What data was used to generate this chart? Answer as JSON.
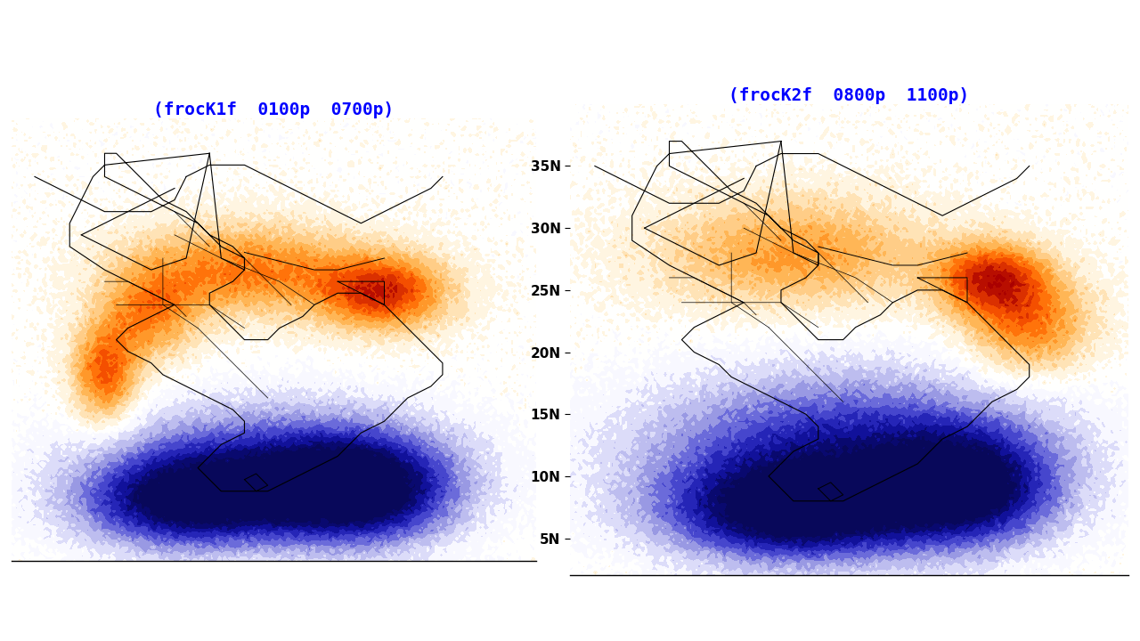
{
  "title_left": "(frocK1f  0100p  0700p)",
  "title_right": "(frocK2f  0800p  1100p)",
  "title_color": "#0000FF",
  "title_fontsize": 14,
  "background_color": "#FFFFFF",
  "fig_width": 12.8,
  "fig_height": 7.2,
  "lat_ticks": [
    5,
    10,
    15,
    20,
    25,
    30,
    35
  ],
  "lon_range": [
    65,
    100
  ],
  "lat_range": [
    3,
    38
  ],
  "colormap_colors": [
    "#08085A",
    "#0A0A8C",
    "#1A1AAF",
    "#3A3AC8",
    "#6060D8",
    "#9090E0",
    "#B8B8EE",
    "#D8D8F8",
    "#F0F0FF",
    "#FFFFFF",
    "#FFF5E0",
    "#FFE0B0",
    "#FFCA80",
    "#FFB04A",
    "#FF9020",
    "#FF6600",
    "#EE4400",
    "#CC2200",
    "#AA0000"
  ],
  "map_image_note": "This is a screenshot of a meteorological map showing India wind anomaly patterns"
}
